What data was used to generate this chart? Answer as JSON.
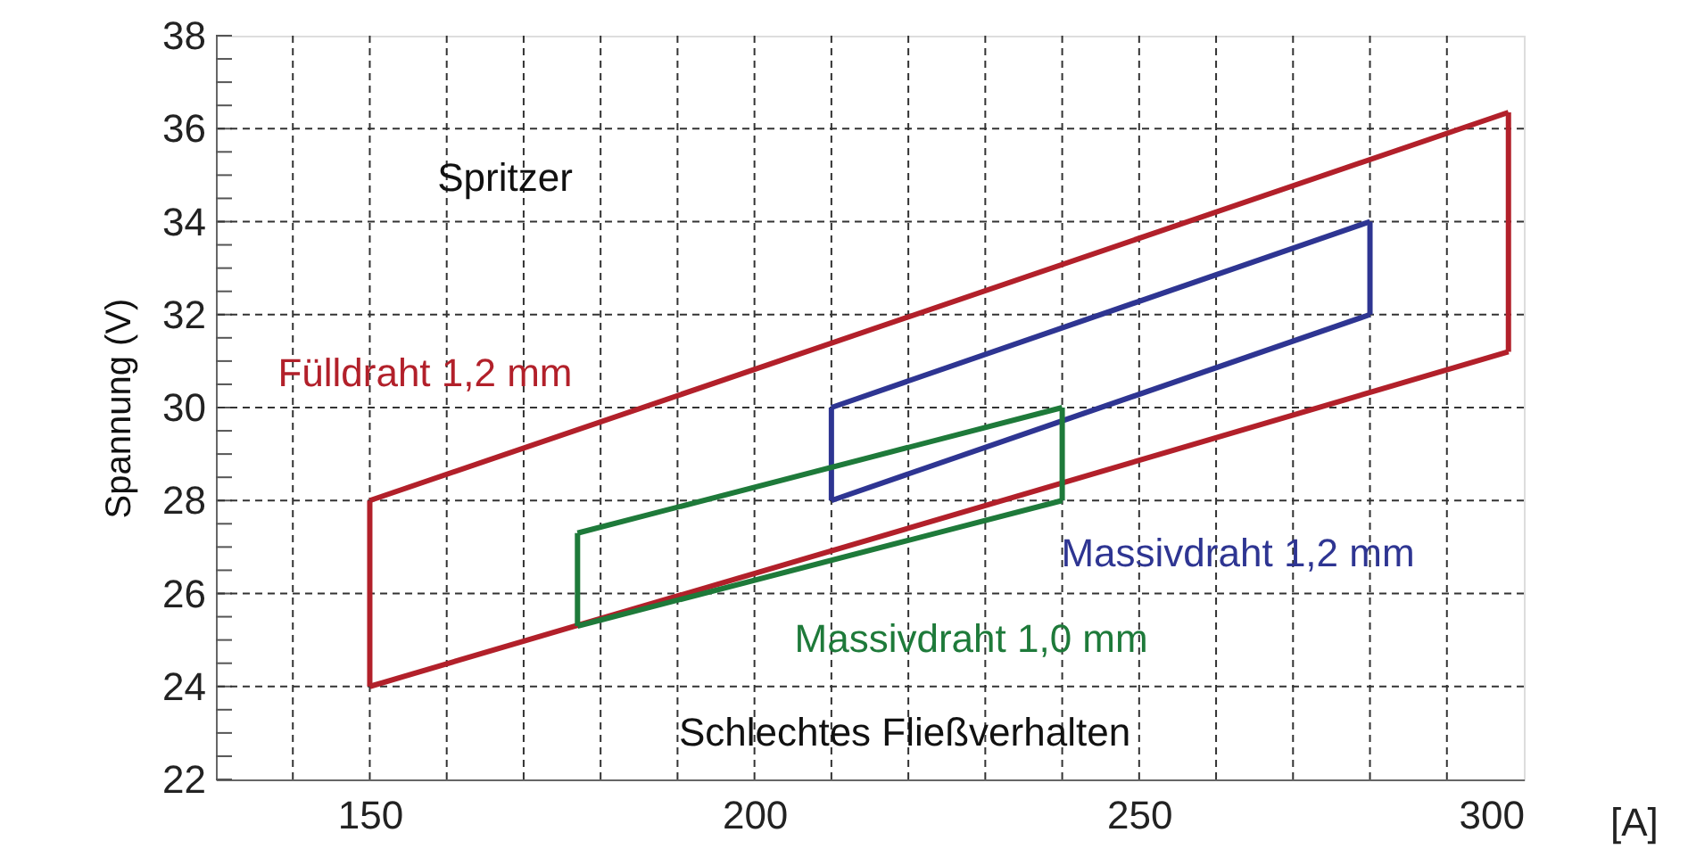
{
  "chart_data": {
    "type": "line",
    "ylabel": "Spannung (V)",
    "xlabel": "[A]",
    "xlim": [
      130,
      300
    ],
    "ylim": [
      22,
      38
    ],
    "xticks": [
      {
        "value": 140,
        "label": null
      },
      150,
      {
        "value": 160,
        "label": null
      },
      {
        "value": 170,
        "label": null
      },
      {
        "value": 180,
        "label": null
      },
      {
        "value": 190,
        "label": null
      },
      200,
      {
        "value": 210,
        "label": null
      },
      {
        "value": 220,
        "label": null
      },
      {
        "value": 230,
        "label": null
      },
      {
        "value": 240,
        "label": null
      },
      250,
      {
        "value": 260,
        "label": null
      },
      {
        "value": 270,
        "label": null
      },
      {
        "value": 280,
        "label": null
      },
      {
        "value": 290,
        "label": null
      },
      300
    ],
    "yticks": [
      22,
      {
        "value": 22.5,
        "label": null
      },
      {
        "value": 23,
        "label": null
      },
      {
        "value": 23.5,
        "label": null
      },
      24,
      {
        "value": 24.5,
        "label": null
      },
      {
        "value": 25,
        "label": null
      },
      {
        "value": 25.5,
        "label": null
      },
      26,
      {
        "value": 26.5,
        "label": null
      },
      {
        "value": 27,
        "label": null
      },
      {
        "value": 27.5,
        "label": null
      },
      28,
      {
        "value": 28.5,
        "label": null
      },
      {
        "value": 29,
        "label": null
      },
      {
        "value": 29.5,
        "label": null
      },
      30,
      {
        "value": 30.5,
        "label": null
      },
      {
        "value": 31,
        "label": null
      },
      {
        "value": 31.5,
        "label": null
      },
      32,
      {
        "value": 32.5,
        "label": null
      },
      {
        "value": 33,
        "label": null
      },
      {
        "value": 33.5,
        "label": null
      },
      34,
      {
        "value": 34.5,
        "label": null
      },
      {
        "value": 35,
        "label": null
      },
      {
        "value": 35.5,
        "label": null
      },
      36,
      {
        "value": 36.5,
        "label": null
      },
      {
        "value": 37,
        "label": null
      },
      {
        "value": 37.5,
        "label": null
      },
      38
    ],
    "grid": true,
    "marker": "none",
    "line_style": "solid",
    "series": [
      {
        "name": "Fülldraht 1,2 mm",
        "color": "#b2202a",
        "x": [
          150,
          298
        ],
        "values": [
          28,
          36.35
        ]
      },
      {
        "color": "#b2202a",
        "x": [
          150,
          298
        ],
        "values": [
          24,
          31.2
        ],
        "errors": [
          [
            24,
            28
          ],
          [
            31.2,
            36.35
          ]
        ]
      },
      {
        "name": "Massivdraht 1,2 mm",
        "color": "#2e3592",
        "x": [
          210,
          280
        ],
        "values": [
          30,
          34
        ]
      },
      {
        "color": "#2e3592",
        "x": [
          210,
          280
        ],
        "values": [
          28,
          32
        ],
        "errors": [
          [
            28,
            30
          ],
          [
            32,
            34
          ]
        ]
      },
      {
        "name": "Massivdraht 1,0 mm",
        "color": "#1e7a3a",
        "x": [
          177,
          240
        ],
        "values": [
          27.3,
          30
        ]
      },
      {
        "color": "#1e7a3a",
        "x": [
          177,
          240
        ],
        "values": [
          25.3,
          28
        ],
        "errors": [
          [
            25.3,
            27.3
          ],
          [
            28,
            30
          ]
        ]
      }
    ],
    "annotations": [
      "Spritzer",
      "Schlechtes Fließverhalten"
    ]
  }
}
